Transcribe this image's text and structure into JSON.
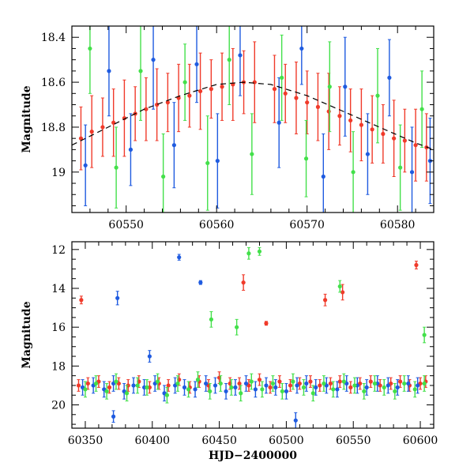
{
  "figure": {
    "xlabel": "HJD−2400000",
    "ylabel": "Magnitude"
  },
  "colors": {
    "blue": "#1f5be0",
    "red": "#f03a2a",
    "green": "#43e04a",
    "model": "#000000"
  },
  "chart_data": [
    {
      "type": "scatter",
      "panel": "top",
      "title": "",
      "xlabel": "",
      "ylabel": "Magnitude",
      "xlim": [
        60544,
        60584
      ],
      "ylim": [
        19.18,
        18.35
      ],
      "y_inverted": true,
      "xticks": [
        60550,
        60560,
        60570,
        60580
      ],
      "yticks": [
        18.4,
        18.6,
        18.8,
        19
      ],
      "ytick_labels": [
        "18.4",
        "18.6",
        "18.8",
        "19"
      ],
      "series": [
        {
          "color": "red",
          "x": [
            60545.0,
            60546.2,
            60547.4,
            60548.6,
            60549.8,
            60551.0,
            60552.2,
            60553.4,
            60554.6,
            60555.8,
            60557.0,
            60558.2,
            60559.4,
            60560.6,
            60561.8,
            60563.0,
            60564.2,
            60566.4,
            60567.6,
            60568.8,
            60570.0,
            60571.2,
            60572.4,
            60573.6,
            60574.8,
            60576.0,
            60577.2,
            60578.4,
            60579.6,
            60580.8,
            60582.0,
            60583.2
          ],
          "y": [
            18.85,
            18.82,
            18.8,
            18.78,
            18.76,
            18.74,
            18.72,
            18.7,
            18.69,
            18.67,
            18.66,
            18.64,
            18.63,
            18.62,
            18.61,
            18.6,
            18.6,
            18.63,
            18.65,
            18.67,
            18.69,
            18.71,
            18.73,
            18.75,
            18.77,
            18.79,
            18.81,
            18.83,
            18.85,
            18.86,
            18.88,
            18.89
          ],
          "err": [
            0.14,
            0.16,
            0.13,
            0.15,
            0.17,
            0.12,
            0.14,
            0.16,
            0.13,
            0.15,
            0.14,
            0.17,
            0.13,
            0.15,
            0.16,
            0.14,
            0.18,
            0.15,
            0.13,
            0.16,
            0.14,
            0.15,
            0.17,
            0.13,
            0.14,
            0.16,
            0.15,
            0.13,
            0.17,
            0.14,
            0.16,
            0.15
          ]
        },
        {
          "color": "blue",
          "x": [
            60545.5,
            60548.1,
            60550.5,
            60553.0,
            60555.3,
            60557.8,
            60560.1,
            60562.6,
            60566.9,
            60569.4,
            60571.8,
            60574.2,
            60576.7,
            60579.1,
            60581.6,
            60583.6
          ],
          "y": [
            18.97,
            18.55,
            18.9,
            18.5,
            18.88,
            18.52,
            18.95,
            18.48,
            18.78,
            18.45,
            19.02,
            18.62,
            18.92,
            18.58,
            19.0,
            18.95
          ],
          "err": [
            0.18,
            0.2,
            0.16,
            0.22,
            0.19,
            0.17,
            0.21,
            0.18,
            0.2,
            0.16,
            0.19,
            0.22,
            0.18,
            0.17,
            0.2,
            0.19
          ]
        },
        {
          "color": "green",
          "x": [
            60546.0,
            60548.9,
            60551.6,
            60554.1,
            60556.5,
            60559.0,
            60561.4,
            60563.9,
            60567.2,
            60569.9,
            60572.5,
            60575.1,
            60577.8,
            60580.3,
            60582.7
          ],
          "y": [
            18.45,
            18.98,
            18.55,
            19.02,
            18.6,
            18.96,
            18.5,
            18.92,
            18.58,
            18.94,
            18.62,
            19.0,
            18.66,
            18.98,
            18.72
          ],
          "err": [
            0.2,
            0.18,
            0.22,
            0.19,
            0.17,
            0.21,
            0.2,
            0.18,
            0.19,
            0.17,
            0.2,
            0.18,
            0.21,
            0.19,
            0.17
          ]
        }
      ],
      "model_curve": {
        "color": "model",
        "x": [
          60544,
          60548,
          60552,
          60556,
          60560,
          60563,
          60566,
          60570,
          60574,
          60578,
          60582,
          60584
        ],
        "y": [
          18.88,
          18.8,
          18.72,
          18.66,
          18.61,
          18.6,
          18.61,
          18.66,
          18.73,
          18.8,
          18.87,
          18.9
        ]
      }
    },
    {
      "type": "scatter",
      "panel": "bottom",
      "title": "",
      "xlabel": "HJD−2400000",
      "ylabel": "Magnitude",
      "xlim": [
        60340,
        60610
      ],
      "ylim": [
        21.2,
        11.6
      ],
      "y_inverted": true,
      "xticks": [
        60350,
        60400,
        60450,
        60500,
        60550,
        60600
      ],
      "yticks": [
        12,
        14,
        16,
        18,
        20
      ],
      "ytick_labels": [
        "12",
        "14",
        "16",
        "18",
        "20"
      ],
      "series": [
        {
          "color": "red",
          "x": [
            60345,
            60352,
            60360,
            60368,
            60375,
            60382,
            60390,
            60398,
            60405,
            60412,
            60420,
            60428,
            60435,
            60442,
            60450,
            60458,
            60465,
            60472,
            60480,
            60488,
            60495,
            60503,
            60510,
            60518,
            60525,
            60533,
            60540,
            60548,
            60555,
            60563,
            60570,
            60578,
            60585,
            60592,
            60600,
            60604,
            60468,
            60529,
            60542,
            60597,
            60347,
            60485
          ],
          "y": [
            19.0,
            18.9,
            18.8,
            19.1,
            18.9,
            19.0,
            18.8,
            19.1,
            18.9,
            19.0,
            18.7,
            19.1,
            18.8,
            19.0,
            18.6,
            18.9,
            18.9,
            19.0,
            18.7,
            19.1,
            18.8,
            19.0,
            18.9,
            18.8,
            19.0,
            18.9,
            18.8,
            19.1,
            18.9,
            18.8,
            19.0,
            18.9,
            18.8,
            19.0,
            18.9,
            18.8,
            13.7,
            14.6,
            14.2,
            12.8,
            14.6,
            15.8
          ],
          "err": [
            0.3,
            0.3,
            0.3,
            0.3,
            0.3,
            0.3,
            0.3,
            0.3,
            0.3,
            0.3,
            0.3,
            0.3,
            0.3,
            0.3,
            0.3,
            0.3,
            0.3,
            0.3,
            0.3,
            0.3,
            0.3,
            0.3,
            0.3,
            0.3,
            0.3,
            0.3,
            0.3,
            0.3,
            0.3,
            0.3,
            0.3,
            0.3,
            0.3,
            0.3,
            0.3,
            0.3,
            0.4,
            0.3,
            0.4,
            0.2,
            0.2,
            0.1
          ]
        },
        {
          "color": "blue",
          "x": [
            60348,
            60356,
            60364,
            60371,
            60379,
            60386,
            60394,
            60402,
            60409,
            60417,
            60424,
            60432,
            60440,
            60447,
            60455,
            60462,
            60470,
            60477,
            60485,
            60492,
            60500,
            60508,
            60515,
            60522,
            60530,
            60538,
            60545,
            60553,
            60560,
            60568,
            60576,
            60583,
            60591,
            60598,
            60420,
            60436,
            60374,
            60398,
            60371,
            60507
          ],
          "y": [
            19.1,
            19.0,
            19.2,
            18.9,
            19.3,
            19.0,
            19.1,
            18.9,
            19.4,
            19.0,
            19.1,
            19.2,
            18.9,
            19.0,
            19.3,
            19.1,
            18.9,
            19.2,
            19.0,
            19.1,
            19.3,
            19.0,
            18.9,
            19.1,
            19.0,
            19.2,
            18.9,
            19.0,
            19.1,
            18.9,
            19.0,
            19.1,
            18.9,
            19.0,
            12.4,
            13.7,
            14.5,
            17.5,
            20.6,
            20.8
          ],
          "err": [
            0.4,
            0.4,
            0.4,
            0.4,
            0.4,
            0.4,
            0.4,
            0.4,
            0.4,
            0.4,
            0.4,
            0.4,
            0.4,
            0.4,
            0.4,
            0.4,
            0.4,
            0.4,
            0.4,
            0.4,
            0.4,
            0.4,
            0.4,
            0.4,
            0.4,
            0.4,
            0.4,
            0.4,
            0.4,
            0.4,
            0.4,
            0.4,
            0.4,
            0.4,
            0.15,
            0.1,
            0.35,
            0.3,
            0.3,
            0.4
          ]
        },
        {
          "color": "green",
          "x": [
            60350,
            60358,
            60366,
            60373,
            60381,
            60389,
            60396,
            60404,
            60411,
            60419,
            60427,
            60434,
            60443,
            60451,
            60459,
            60466,
            60474,
            60482,
            60490,
            60497,
            60505,
            60513,
            60520,
            60528,
            60535,
            60543,
            60551,
            60558,
            60566,
            60573,
            60581,
            60588,
            60596,
            60603,
            60472,
            60480,
            60540,
            60603,
            60444,
            60463
          ],
          "y": [
            19.2,
            18.9,
            19.3,
            18.8,
            19.4,
            19.0,
            19.1,
            18.8,
            19.5,
            18.9,
            19.2,
            18.7,
            19.3,
            18.9,
            19.1,
            19.4,
            18.8,
            19.2,
            18.9,
            19.3,
            18.8,
            19.1,
            19.4,
            18.9,
            19.2,
            18.8,
            19.0,
            19.3,
            18.9,
            19.1,
            19.3,
            18.9,
            19.2,
            18.9,
            12.2,
            12.1,
            13.9,
            16.4,
            15.6,
            16.0
          ],
          "err": [
            0.4,
            0.4,
            0.4,
            0.4,
            0.4,
            0.4,
            0.4,
            0.4,
            0.4,
            0.4,
            0.4,
            0.4,
            0.4,
            0.4,
            0.4,
            0.4,
            0.4,
            0.4,
            0.4,
            0.4,
            0.4,
            0.4,
            0.4,
            0.4,
            0.4,
            0.4,
            0.4,
            0.4,
            0.4,
            0.4,
            0.4,
            0.4,
            0.4,
            0.4,
            0.3,
            0.2,
            0.3,
            0.4,
            0.4,
            0.4
          ]
        }
      ]
    }
  ]
}
